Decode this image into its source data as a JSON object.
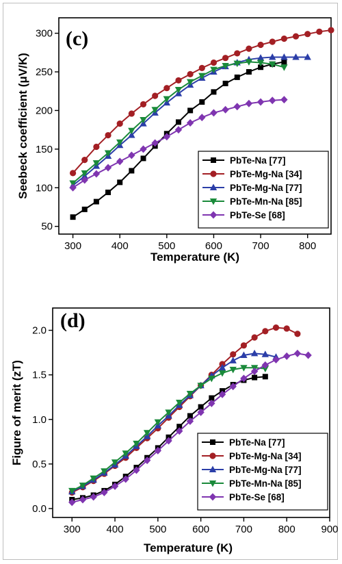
{
  "chart_data": [
    {
      "type": "line",
      "panel_label": "(c)",
      "xlabel": "Temperature (K)",
      "ylabel": "Seebeck coefficient (μV/K)",
      "xlim": [
        270,
        850
      ],
      "ylim": [
        40,
        320
      ],
      "xticks": [
        300,
        400,
        500,
        600,
        700,
        800
      ],
      "yticks": [
        50,
        100,
        150,
        200,
        250,
        300
      ],
      "legend_position": "bottom-right",
      "grid": false,
      "series": [
        {
          "name": "PbTe-Na [77]",
          "color": "#000000",
          "marker": "square",
          "x": [
            300,
            325,
            350,
            375,
            400,
            425,
            450,
            475,
            500,
            525,
            550,
            575,
            600,
            625,
            650,
            675,
            700,
            725,
            750
          ],
          "y": [
            62,
            72,
            82,
            94,
            107,
            122,
            138,
            154,
            170,
            185,
            200,
            211,
            224,
            235,
            243,
            250,
            256,
            260,
            263
          ]
        },
        {
          "name": "PbTe-Mg-Na [34]",
          "color": "#a31f24",
          "marker": "circle",
          "x": [
            300,
            325,
            350,
            375,
            400,
            425,
            450,
            475,
            500,
            525,
            550,
            575,
            600,
            625,
            650,
            675,
            700,
            725,
            750,
            775,
            800,
            825,
            850
          ],
          "y": [
            119,
            136,
            153,
            168,
            183,
            196,
            208,
            219,
            229,
            239,
            247,
            255,
            262,
            268,
            274,
            280,
            285,
            289,
            293,
            296,
            299,
            302,
            304
          ]
        },
        {
          "name": "PbTe-Mg-Na [77]",
          "color": "#2b3ea8",
          "marker": "triangle-up",
          "x": [
            300,
            325,
            350,
            375,
            400,
            425,
            450,
            475,
            500,
            525,
            550,
            575,
            600,
            625,
            650,
            675,
            700,
            725,
            750,
            775,
            800
          ],
          "y": [
            103,
            115,
            128,
            141,
            155,
            168,
            183,
            197,
            210,
            222,
            233,
            242,
            250,
            257,
            262,
            266,
            268,
            269,
            269,
            269,
            269
          ]
        },
        {
          "name": "PbTe-Mn-Na [85]",
          "color": "#1a8a3a",
          "marker": "triangle-down",
          "x": [
            300,
            325,
            350,
            375,
            400,
            425,
            450,
            475,
            500,
            525,
            550,
            575,
            600,
            625,
            650,
            675,
            700,
            725,
            750
          ],
          "y": [
            106,
            119,
            132,
            145,
            159,
            174,
            188,
            201,
            215,
            227,
            237,
            245,
            253,
            258,
            261,
            263,
            262,
            260,
            256
          ]
        },
        {
          "name": "PbTe-Se [68]",
          "color": "#7f35b0",
          "marker": "diamond",
          "x": [
            300,
            325,
            350,
            375,
            400,
            425,
            450,
            475,
            500,
            525,
            550,
            575,
            600,
            625,
            650,
            675,
            700,
            725,
            750
          ],
          "y": [
            100,
            110,
            118,
            126,
            134,
            142,
            150,
            158,
            166,
            175,
            184,
            191,
            197,
            201,
            205,
            209,
            211,
            213,
            214
          ]
        }
      ]
    },
    {
      "type": "line",
      "panel_label": "(d)",
      "xlabel": "Temperature (K)",
      "ylabel": "Figure of merit (zT)",
      "xlim": [
        255,
        900
      ],
      "ylim": [
        -0.1,
        2.25
      ],
      "xticks": [
        300,
        400,
        500,
        600,
        700,
        800,
        900
      ],
      "yticks": [
        0.0,
        0.5,
        1.0,
        1.5,
        2.0
      ],
      "ytick_labels": [
        "0.0",
        "0.5",
        "1.0",
        "1.5",
        "2.0"
      ],
      "legend_position": "bottom-right",
      "grid": false,
      "series": [
        {
          "name": "PbTe-Na [77]",
          "color": "#000000",
          "marker": "square",
          "x": [
            300,
            325,
            350,
            375,
            400,
            425,
            450,
            475,
            500,
            525,
            550,
            575,
            600,
            625,
            650,
            675,
            700,
            725,
            750
          ],
          "y": [
            0.1,
            0.12,
            0.15,
            0.2,
            0.27,
            0.36,
            0.46,
            0.57,
            0.68,
            0.8,
            0.92,
            1.04,
            1.14,
            1.24,
            1.32,
            1.39,
            1.44,
            1.47,
            1.48
          ]
        },
        {
          "name": "PbTe-Mg-Na [34]",
          "color": "#a31f24",
          "marker": "circle",
          "x": [
            300,
            325,
            350,
            375,
            400,
            425,
            450,
            475,
            500,
            525,
            550,
            575,
            600,
            625,
            650,
            675,
            700,
            725,
            750,
            775,
            800,
            825
          ],
          "y": [
            0.18,
            0.24,
            0.31,
            0.39,
            0.48,
            0.57,
            0.68,
            0.79,
            0.9,
            1.02,
            1.14,
            1.26,
            1.38,
            1.5,
            1.62,
            1.73,
            1.83,
            1.92,
            1.99,
            2.03,
            2.02,
            1.96
          ]
        },
        {
          "name": "PbTe-Mg-Na [77]",
          "color": "#2b3ea8",
          "marker": "triangle-up",
          "x": [
            300,
            325,
            350,
            375,
            400,
            425,
            450,
            475,
            500,
            525,
            550,
            575,
            600,
            625,
            650,
            675,
            700,
            725,
            750,
            775
          ],
          "y": [
            0.19,
            0.25,
            0.32,
            0.4,
            0.49,
            0.59,
            0.7,
            0.81,
            0.93,
            1.04,
            1.16,
            1.27,
            1.38,
            1.49,
            1.58,
            1.66,
            1.72,
            1.74,
            1.73,
            1.7
          ]
        },
        {
          "name": "PbTe-Mn-Na [85]",
          "color": "#1a8a3a",
          "marker": "triangle-down",
          "x": [
            300,
            325,
            350,
            375,
            400,
            425,
            450,
            475,
            500,
            525,
            550,
            575,
            600,
            625,
            650,
            675,
            700,
            725,
            750
          ],
          "y": [
            0.2,
            0.26,
            0.34,
            0.42,
            0.52,
            0.62,
            0.73,
            0.85,
            0.97,
            1.08,
            1.19,
            1.29,
            1.38,
            1.46,
            1.52,
            1.56,
            1.58,
            1.58,
            1.57
          ]
        },
        {
          "name": "PbTe-Se [68]",
          "color": "#7f35b0",
          "marker": "diamond",
          "x": [
            300,
            325,
            350,
            375,
            400,
            425,
            450,
            475,
            500,
            525,
            550,
            575,
            600,
            625,
            650,
            675,
            700,
            725,
            750,
            775,
            800,
            825,
            850
          ],
          "y": [
            0.07,
            0.1,
            0.13,
            0.18,
            0.25,
            0.33,
            0.43,
            0.54,
            0.65,
            0.76,
            0.87,
            0.98,
            1.08,
            1.18,
            1.28,
            1.37,
            1.46,
            1.54,
            1.61,
            1.67,
            1.71,
            1.74,
            1.72
          ]
        }
      ]
    }
  ]
}
